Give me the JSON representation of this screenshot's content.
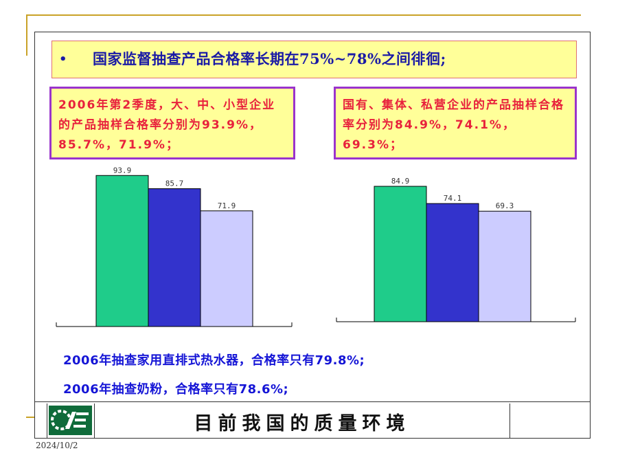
{
  "headline": {
    "bullet": "•",
    "text": "国家监督抽查产品合格率长期在75%~78%之间徘徊;"
  },
  "notes": {
    "left": "2006年第2季度，大、中、小型企业的产品抽样合格率分别为93.9%，85.7%，71.9%；",
    "right": "国有、集体、私营企业的产品抽样合格率分别为84.9%，74.1%，69.3%；"
  },
  "colors": {
    "series_1": "#1fcc8a",
    "series_2": "#3333cc",
    "series_3": "#ccccff",
    "note_border": "#9a33cc",
    "note_text": "#e8213c",
    "blue_text": "#1515d6",
    "panel_fill": "#ffff99",
    "gold": "#c9a227"
  },
  "chart_data": [
    {
      "type": "bar",
      "categories": [
        "",
        "",
        ""
      ],
      "values": [
        93.9,
        85.7,
        71.9
      ],
      "value_labels": [
        "93.9",
        "85.7",
        "71.9"
      ],
      "title": "",
      "xlabel": "",
      "ylabel": "",
      "ylim": [
        0,
        100
      ],
      "grid": false,
      "legend": "none"
    },
    {
      "type": "bar",
      "categories": [
        "",
        "",
        ""
      ],
      "values": [
        84.9,
        74.1,
        69.3
      ],
      "value_labels": [
        "84.9",
        "74.1",
        "69.3"
      ],
      "title": "",
      "xlabel": "",
      "ylabel": "",
      "ylim": [
        0,
        100
      ],
      "grid": false,
      "legend": "none"
    }
  ],
  "stats": {
    "line_1": "2006年抽查家用直排式热水器，合格率只有79.8%;",
    "line_2": "2006年抽查奶粉，合格率只有78.6%;"
  },
  "footer": {
    "logo_icon": "company-logo-icon",
    "title": "目前我国的质量环境",
    "date": "2024/10/2"
  }
}
